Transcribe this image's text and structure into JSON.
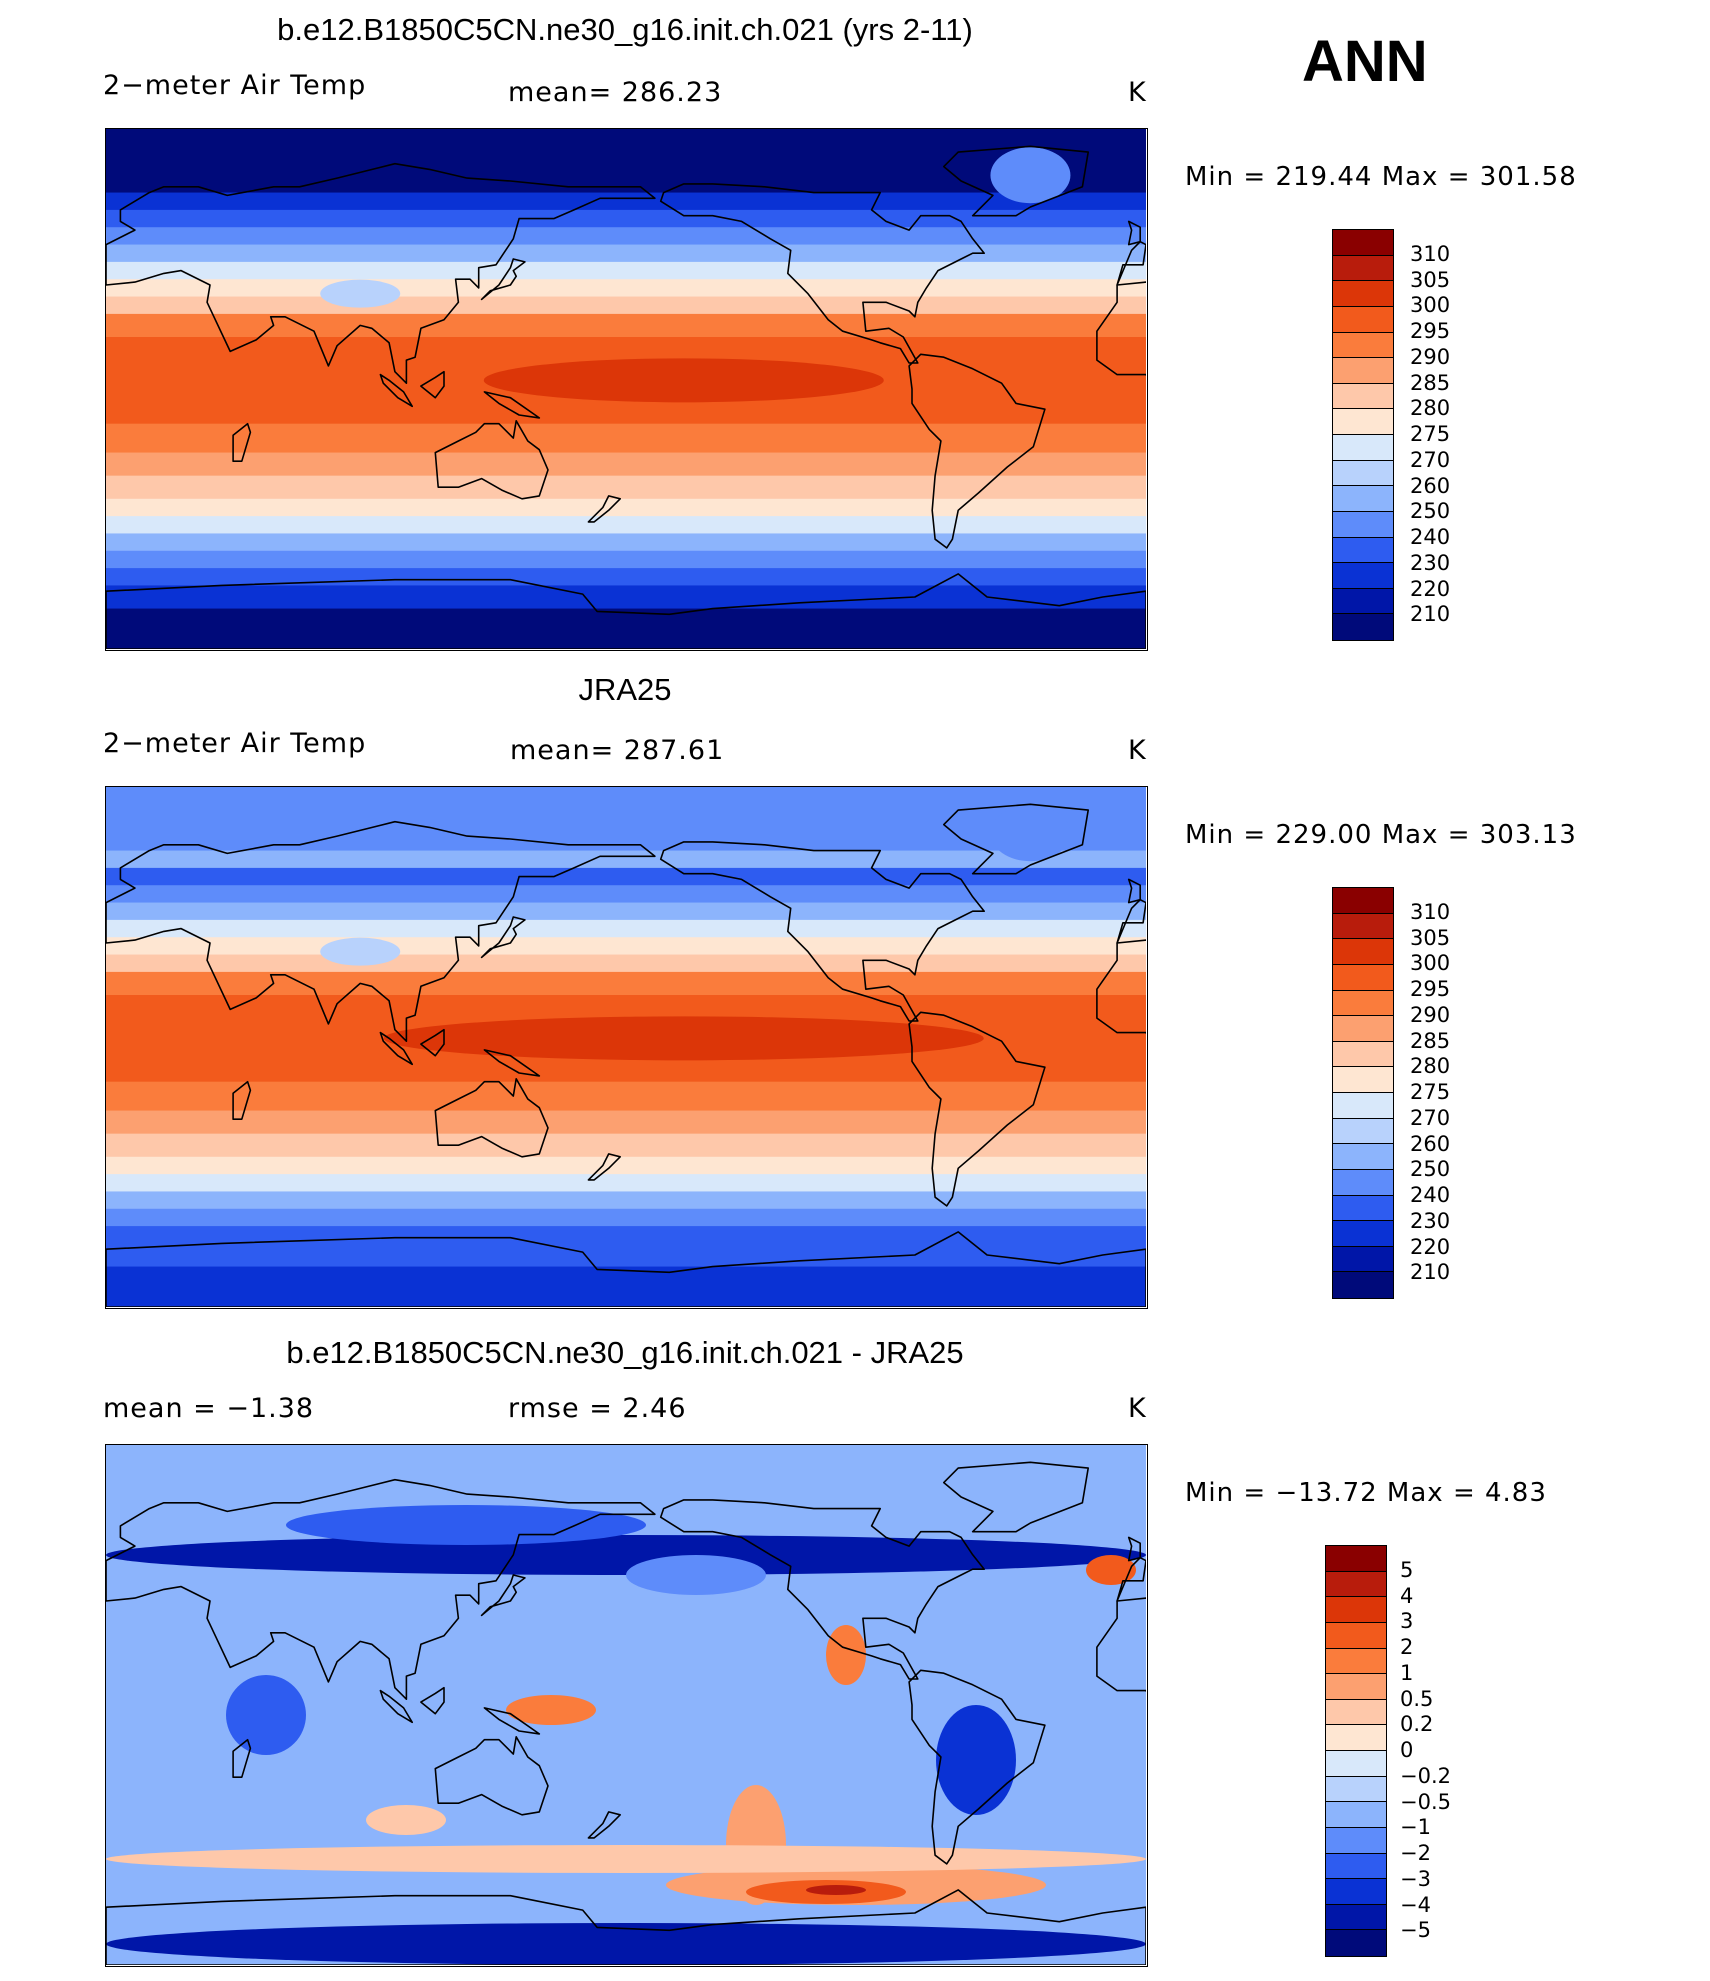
{
  "season": "ANN",
  "panels": [
    {
      "title": "b.e12.B1850C5CN.ne30_g16.init.ch.021 (yrs 2-11)",
      "left_label": "2−meter Air Temp",
      "center_label": "mean=  286.23",
      "units": "K",
      "minmax": "Min  =  219.44  Max  =  301.58",
      "colorbar": {
        "levels": [
          "310",
          "305",
          "300",
          "295",
          "290",
          "285",
          "280",
          "275",
          "270",
          "260",
          "250",
          "240",
          "230",
          "220",
          "210"
        ],
        "colors": [
          "#8a0000",
          "#b81c0c",
          "#dc3608",
          "#f25a1c",
          "#fa7c3c",
          "#fca070",
          "#fec8aa",
          "#fee6d2",
          "#d8e8fa",
          "#b8d2fc",
          "#8cb4fc",
          "#5e8cfa",
          "#2e5cf0",
          "#0a32d4",
          "#0016a8",
          "#000a7a"
        ]
      },
      "map_type": "temperature"
    },
    {
      "title": "JRA25",
      "left_label": "2−meter Air Temp",
      "center_label": "mean=  287.61",
      "units": "K",
      "minmax": "Min  =  229.00  Max  =  303.13",
      "colorbar": {
        "levels": [
          "310",
          "305",
          "300",
          "295",
          "290",
          "285",
          "280",
          "275",
          "270",
          "260",
          "250",
          "240",
          "230",
          "220",
          "210"
        ],
        "colors": [
          "#8a0000",
          "#b81c0c",
          "#dc3608",
          "#f25a1c",
          "#fa7c3c",
          "#fca070",
          "#fec8aa",
          "#fee6d2",
          "#d8e8fa",
          "#b8d2fc",
          "#8cb4fc",
          "#5e8cfa",
          "#2e5cf0",
          "#0a32d4",
          "#0016a8",
          "#000a7a"
        ]
      },
      "map_type": "temperature"
    },
    {
      "title": "b.e12.B1850C5CN.ne30_g16.init.ch.021 - JRA25",
      "left_label": "mean  =    −1.38",
      "center_label": "rmse  =     2.46",
      "units": "K",
      "minmax": "Min  =  −13.72  Max  =     4.83",
      "colorbar": {
        "levels": [
          "5",
          "4",
          "3",
          "2",
          "1",
          "0.5",
          "0.2",
          "0",
          "−0.2",
          "−0.5",
          "−1",
          "−2",
          "−3",
          "−4",
          "−5"
        ],
        "colors": [
          "#8a0000",
          "#b81c0c",
          "#dc3608",
          "#f25a1c",
          "#fa7c3c",
          "#fca070",
          "#fec8aa",
          "#fee6d2",
          "#d8e8fa",
          "#b8d2fc",
          "#8cb4fc",
          "#5e8cfa",
          "#2e5cf0",
          "#0a32d4",
          "#0016a8",
          "#000a7a"
        ]
      },
      "map_type": "difference"
    }
  ]
}
